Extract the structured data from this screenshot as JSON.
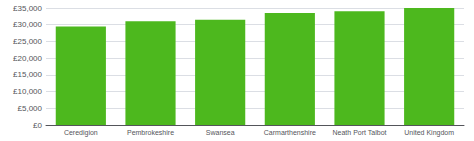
{
  "chart_data": {
    "type": "bar",
    "categories": [
      "Ceredigion",
      "Pembrokeshire",
      "Swansea",
      "Carmarthenshire",
      "Neath Port Talbot",
      "United Kingdom"
    ],
    "values": [
      29500,
      31000,
      31500,
      33500,
      34000,
      35000
    ],
    "color": "#4db81e",
    "ylim": [
      0,
      35000
    ],
    "yticks": [
      {
        "value": 0,
        "label": "£0"
      },
      {
        "value": 5000,
        "label": "£5,000"
      },
      {
        "value": 10000,
        "label": "£10,000"
      },
      {
        "value": 15000,
        "label": "£15,000"
      },
      {
        "value": 20000,
        "label": "£20,000"
      },
      {
        "value": 25000,
        "label": "£25,000"
      },
      {
        "value": 30000,
        "label": "£30,000"
      },
      {
        "value": 35000,
        "label": "£35,000"
      }
    ],
    "grid": true
  }
}
